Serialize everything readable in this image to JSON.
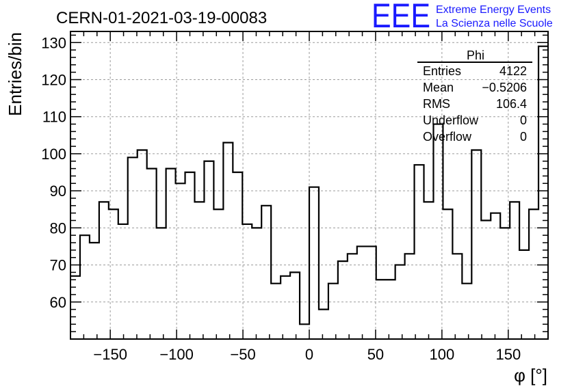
{
  "header": {
    "run_title": "CERN-01-2021-03-19-00083",
    "logo_text": "EEE",
    "brand_line1": "Extreme Energy Events",
    "brand_line2": "La Scienza nelle Scuole",
    "brand_color": "#1a1aff"
  },
  "stats": {
    "title": "Phi",
    "rows": [
      {
        "label": "Entries",
        "value": "4122"
      },
      {
        "label": "Mean",
        "value": "−0.5206"
      },
      {
        "label": "RMS",
        "value": "106.4"
      },
      {
        "label": "Underflow",
        "value": "0"
      },
      {
        "label": "Overflow",
        "value": "0"
      }
    ]
  },
  "chart_data": {
    "type": "histogram",
    "title": "CERN-01-2021-03-19-00083",
    "xlabel": "φ [°]",
    "ylabel": "Entries/bin",
    "xlim": [
      -180,
      180
    ],
    "ylim": [
      50,
      133
    ],
    "bin_width": 7.2,
    "grid": true,
    "xticks": [
      -150,
      -100,
      -50,
      0,
      50,
      100,
      150
    ],
    "yticks": [
      60,
      70,
      80,
      90,
      100,
      110,
      120,
      130
    ],
    "xtick_labels": [
      "−150",
      "−100",
      "−50",
      "0",
      "50",
      "100",
      "150"
    ],
    "ytick_labels": [
      "60",
      "70",
      "80",
      "90",
      "100",
      "110",
      "120",
      "130"
    ],
    "values": [
      67,
      78,
      76,
      87,
      85,
      81,
      99,
      101,
      96,
      80,
      96,
      92,
      95,
      87,
      98,
      85,
      103,
      95,
      81,
      80,
      86,
      65,
      67,
      68,
      54,
      91,
      58,
      65,
      71,
      73,
      75,
      75,
      66,
      66,
      70,
      73,
      97,
      87,
      108,
      85,
      73,
      65,
      101,
      82,
      84,
      80,
      87,
      74,
      85,
      129
    ]
  }
}
